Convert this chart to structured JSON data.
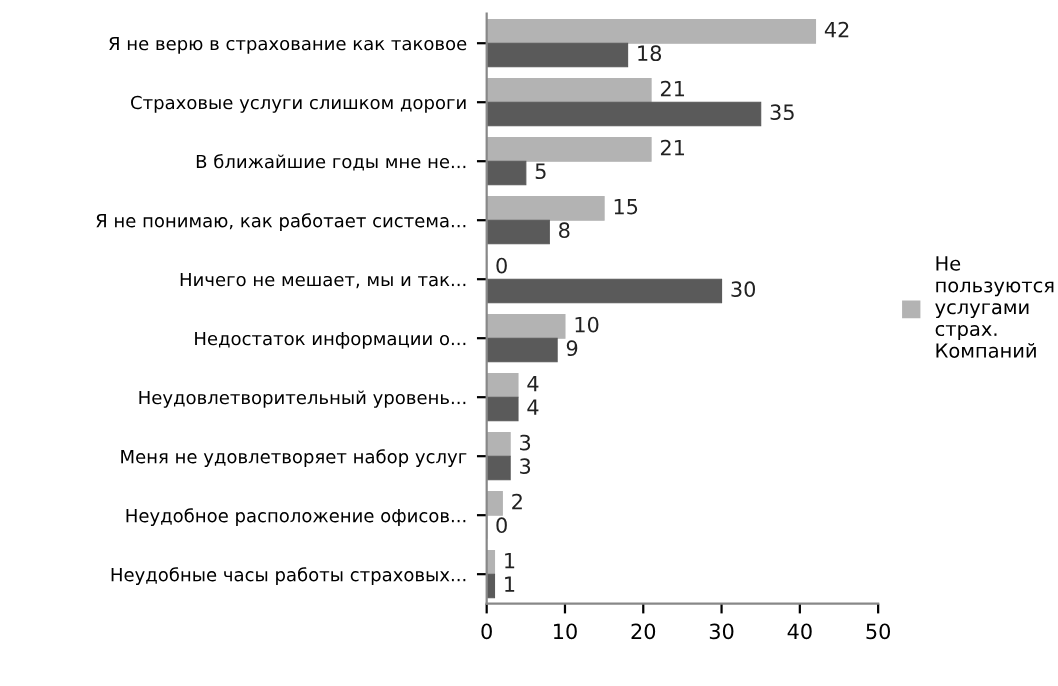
{
  "chart_data": {
    "type": "bar",
    "orientation": "horizontal",
    "categories": [
      "Я не верю в страхование как таковое",
      "Страховые услуги слишком дороги",
      "В ближайшие годы мне не...",
      "Я не понимаю, как работает система...",
      "Ничего не мешает, мы и так...",
      "Недостаток информации о...",
      "Неудовлетворительный уровень...",
      "Меня не удовлетворяет набор услуг",
      "Неудобное расположение офисов...",
      "Неудобные часы работы страховых..."
    ],
    "series": [
      {
        "name": "Не пользуются услугами страх. Компаний",
        "color": "#b3b3b3",
        "values": [
          42,
          21,
          21,
          15,
          0,
          10,
          4,
          3,
          2,
          1
        ]
      },
      {
        "color": "#5a5a5a",
        "values": [
          18,
          35,
          5,
          8,
          30,
          9,
          4,
          3,
          0,
          1
        ]
      }
    ],
    "xlim": [
      0,
      50
    ],
    "xticks": [
      0,
      10,
      20,
      30,
      40,
      50
    ],
    "data_labels": true,
    "legend": "right",
    "grid": false
  }
}
